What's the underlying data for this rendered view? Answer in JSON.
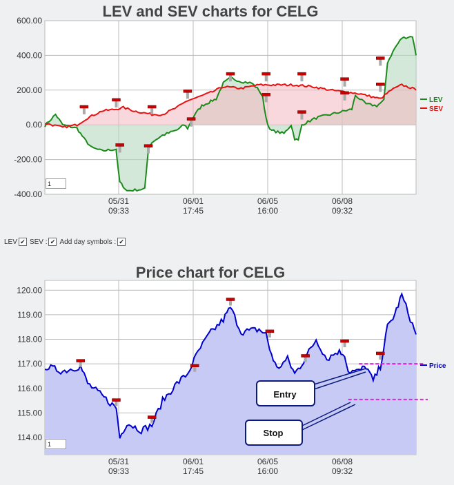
{
  "chart_data": [
    {
      "type": "line",
      "title": "LEV and SEV charts for CELG",
      "x_tick_labels": [
        [
          "05/31",
          "09:33"
        ],
        [
          "06/01",
          "17:45"
        ],
        [
          "06/05",
          "16:00"
        ],
        [
          "06/08",
          "09:32"
        ]
      ],
      "y_tick_labels": [
        "600.00",
        "400.00",
        "200.00",
        "0.00",
        "-200.00",
        "-400.00"
      ],
      "ylim": [
        -400,
        600
      ],
      "legend": "right",
      "grid": true,
      "zoom_value": "1",
      "colors": {
        "LEV": "#1a8a1a",
        "SEV": "#e81010"
      },
      "series": [
        {
          "name": "LEV",
          "points": [
            [
              0,
              -5
            ],
            [
              0.03,
              60
            ],
            [
              0.05,
              0
            ],
            [
              0.09,
              -20
            ],
            [
              0.11,
              -80
            ],
            [
              0.13,
              -130
            ],
            [
              0.16,
              -150
            ],
            [
              0.2,
              -140
            ],
            [
              0.2,
              -160
            ],
            [
              0.21,
              -330
            ],
            [
              0.23,
              -380
            ],
            [
              0.28,
              -370
            ],
            [
              0.29,
              -140
            ],
            [
              0.3,
              -100
            ],
            [
              0.33,
              -60
            ],
            [
              0.37,
              -30
            ],
            [
              0.39,
              0
            ],
            [
              0.4,
              -20
            ],
            [
              0.42,
              60
            ],
            [
              0.44,
              110
            ],
            [
              0.46,
              130
            ],
            [
              0.48,
              150
            ],
            [
              0.5,
              240
            ],
            [
              0.52,
              270
            ],
            [
              0.55,
              250
            ],
            [
              0.58,
              240
            ],
            [
              0.6,
              200
            ],
            [
              0.61,
              160
            ],
            [
              0.62,
              40
            ],
            [
              0.63,
              -30
            ],
            [
              0.67,
              -50
            ],
            [
              0.69,
              0
            ],
            [
              0.7,
              -80
            ],
            [
              0.71,
              -90
            ],
            [
              0.72,
              0
            ],
            [
              0.76,
              40
            ],
            [
              0.8,
              60
            ],
            [
              0.84,
              80
            ],
            [
              0.86,
              90
            ],
            [
              0.87,
              170
            ],
            [
              0.9,
              120
            ],
            [
              0.93,
              110
            ],
            [
              0.95,
              140
            ],
            [
              0.96,
              360
            ],
            [
              0.98,
              440
            ],
            [
              1,
              500
            ],
            [
              1.03,
              510
            ],
            [
              1.04,
              400
            ]
          ]
        },
        {
          "name": "SEV",
          "points": [
            [
              0,
              10
            ],
            [
              0.05,
              -15
            ],
            [
              0.09,
              0
            ],
            [
              0.12,
              40
            ],
            [
              0.16,
              80
            ],
            [
              0.2,
              90
            ],
            [
              0.22,
              100
            ],
            [
              0.25,
              80
            ],
            [
              0.3,
              60
            ],
            [
              0.33,
              60
            ],
            [
              0.37,
              100
            ],
            [
              0.4,
              140
            ],
            [
              0.43,
              160
            ],
            [
              0.47,
              190
            ],
            [
              0.5,
              220
            ],
            [
              0.55,
              210
            ],
            [
              0.6,
              230
            ],
            [
              0.64,
              230
            ],
            [
              0.7,
              230
            ],
            [
              0.75,
              220
            ],
            [
              0.8,
              200
            ],
            [
              0.84,
              190
            ],
            [
              0.88,
              180
            ],
            [
              0.92,
              160
            ],
            [
              0.94,
              150
            ],
            [
              0.97,
              200
            ],
            [
              1,
              230
            ],
            [
              1.03,
              210
            ],
            [
              1.04,
              200
            ]
          ]
        }
      ],
      "day_symbols": [
        [
          0.11,
          100
        ],
        [
          0.2,
          140
        ],
        [
          0.21,
          -120
        ],
        [
          0.29,
          -125
        ],
        [
          0.3,
          100
        ],
        [
          0.4,
          190
        ],
        [
          0.41,
          30
        ],
        [
          0.52,
          290
        ],
        [
          0.62,
          290
        ],
        [
          0.62,
          170
        ],
        [
          0.72,
          290
        ],
        [
          0.72,
          70
        ],
        [
          0.84,
          260
        ],
        [
          0.84,
          180
        ],
        [
          0.94,
          380
        ],
        [
          0.94,
          230
        ]
      ]
    },
    {
      "type": "line",
      "title": "Price chart for CELG",
      "x_tick_labels": [
        [
          "05/31",
          "09:33"
        ],
        [
          "06/01",
          "17:45"
        ],
        [
          "06/05",
          "16:00"
        ],
        [
          "06/08",
          "09:32"
        ]
      ],
      "y_tick_labels": [
        "120.00",
        "119.00",
        "118.00",
        "117.00",
        "116.00",
        "115.00",
        "114.00"
      ],
      "ylim": [
        113.3,
        120.4
      ],
      "legend": "right",
      "grid": true,
      "zoom_value": "1",
      "colors": {
        "Price": "#0000cc",
        "Entry": "#e020e0",
        "Stop": "#e020e0"
      },
      "series": [
        {
          "name": "Price",
          "points": [
            [
              0,
              116.9
            ],
            [
              0.05,
              116.7
            ],
            [
              0.1,
              116.9
            ],
            [
              0.12,
              116.2
            ],
            [
              0.16,
              115.7
            ],
            [
              0.2,
              115.2
            ],
            [
              0.21,
              114.0
            ],
            [
              0.23,
              114.6
            ],
            [
              0.27,
              114.3
            ],
            [
              0.3,
              114.5
            ],
            [
              0.33,
              115.5
            ],
            [
              0.37,
              116.2
            ],
            [
              0.4,
              116.6
            ],
            [
              0.43,
              117.5
            ],
            [
              0.46,
              118.2
            ],
            [
              0.5,
              118.8
            ],
            [
              0.52,
              119.3
            ],
            [
              0.55,
              118.3
            ],
            [
              0.6,
              118.4
            ],
            [
              0.62,
              118.2
            ],
            [
              0.63,
              117.6
            ],
            [
              0.65,
              116.8
            ],
            [
              0.68,
              117.2
            ],
            [
              0.7,
              116.6
            ],
            [
              0.72,
              117.0
            ],
            [
              0.74,
              117.5
            ],
            [
              0.76,
              118.0
            ],
            [
              0.79,
              117.2
            ],
            [
              0.82,
              117.5
            ],
            [
              0.84,
              117.4
            ],
            [
              0.85,
              116.7
            ],
            [
              0.88,
              116.7
            ],
            [
              0.9,
              116.9
            ],
            [
              0.92,
              116.3
            ],
            [
              0.94,
              116.9
            ],
            [
              0.96,
              118.5
            ],
            [
              0.98,
              119.0
            ],
            [
              1,
              119.8
            ],
            [
              1.03,
              118.6
            ],
            [
              1.04,
              118.2
            ]
          ]
        }
      ],
      "entry_level": 117.0,
      "stop_level": 115.55,
      "day_symbols": [
        [
          0.1,
          117.1
        ],
        [
          0.2,
          115.5
        ],
        [
          0.3,
          114.8
        ],
        [
          0.42,
          116.9
        ],
        [
          0.52,
          119.6
        ],
        [
          0.63,
          118.3
        ],
        [
          0.73,
          117.3
        ],
        [
          0.84,
          117.9
        ],
        [
          0.94,
          117.4
        ]
      ],
      "legend_entries": [
        "Price"
      ],
      "annotations": [
        {
          "label": "Entry"
        },
        {
          "label": "Stop"
        }
      ]
    }
  ],
  "controls": {
    "lev_label": "LEV",
    "sev_label": "SEV :",
    "day_symbols_label": "Add day symbols :",
    "checkmark": "✔"
  }
}
